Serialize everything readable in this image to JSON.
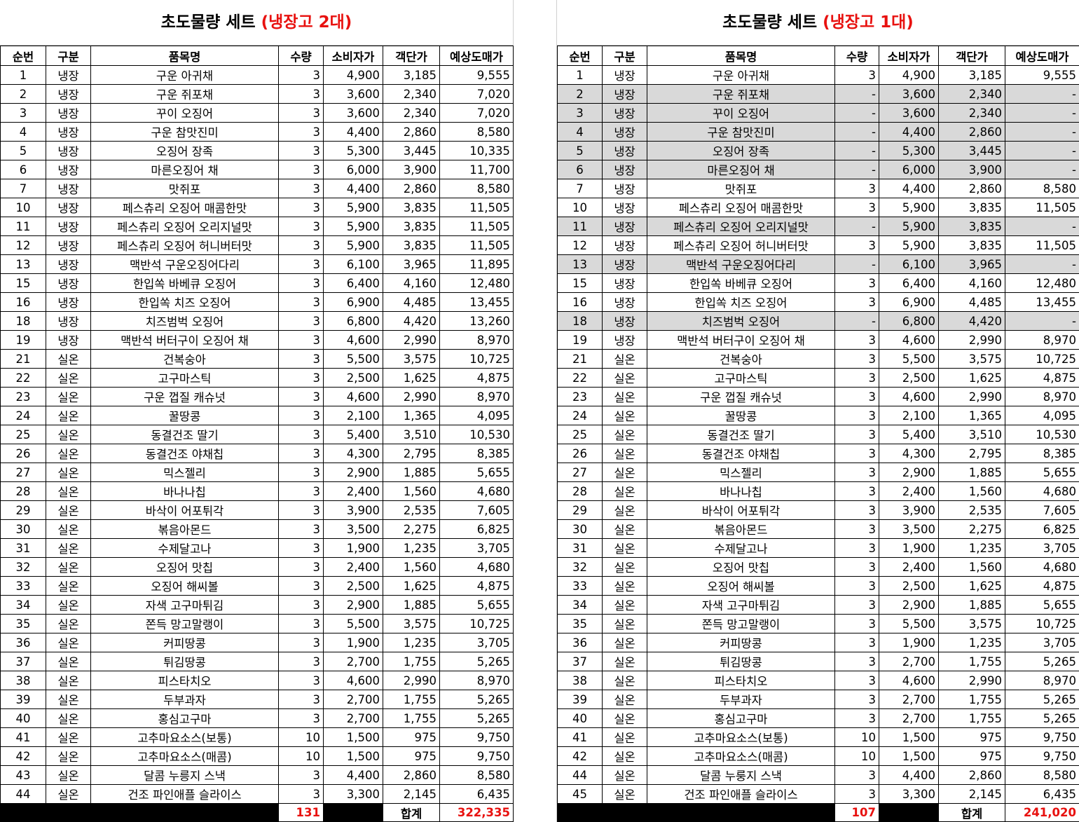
{
  "headers": [
    "순번",
    "구분",
    "품목명",
    "수량",
    "소비자가",
    "객단가",
    "예상도매가"
  ],
  "sheets": [
    {
      "title_main": "초도물량 세트 ",
      "title_sub": "(냉장고 2대)",
      "total_label": "합계",
      "total_qty": "131",
      "total_amount": "322,335",
      "rows": [
        {
          "no": "1",
          "cat": "냉장",
          "name": "구운 아귀채",
          "qty": "3",
          "price": "4,900",
          "unit": "3,185",
          "whole": "9,555",
          "grey": false
        },
        {
          "no": "2",
          "cat": "냉장",
          "name": "구운 쥐포채",
          "qty": "3",
          "price": "3,600",
          "unit": "2,340",
          "whole": "7,020",
          "grey": false
        },
        {
          "no": "3",
          "cat": "냉장",
          "name": "꾸이 오징어",
          "qty": "3",
          "price": "3,600",
          "unit": "2,340",
          "whole": "7,020",
          "grey": false
        },
        {
          "no": "4",
          "cat": "냉장",
          "name": "구운 참맛진미",
          "qty": "3",
          "price": "4,400",
          "unit": "2,860",
          "whole": "8,580",
          "grey": false
        },
        {
          "no": "5",
          "cat": "냉장",
          "name": "오징어 장족",
          "qty": "3",
          "price": "5,300",
          "unit": "3,445",
          "whole": "10,335",
          "grey": false
        },
        {
          "no": "6",
          "cat": "냉장",
          "name": "마른오징어 채",
          "qty": "3",
          "price": "6,000",
          "unit": "3,900",
          "whole": "11,700",
          "grey": false
        },
        {
          "no": "7",
          "cat": "냉장",
          "name": "맛쥐포",
          "qty": "3",
          "price": "4,400",
          "unit": "2,860",
          "whole": "8,580",
          "grey": false
        },
        {
          "no": "10",
          "cat": "냉장",
          "name": "페스츄리 오징어 매콤한맛",
          "qty": "3",
          "price": "5,900",
          "unit": "3,835",
          "whole": "11,505",
          "grey": false
        },
        {
          "no": "11",
          "cat": "냉장",
          "name": "페스츄리 오징어 오리지널맛",
          "qty": "3",
          "price": "5,900",
          "unit": "3,835",
          "whole": "11,505",
          "grey": false
        },
        {
          "no": "12",
          "cat": "냉장",
          "name": "페스츄리 오징어 허니버터맛",
          "qty": "3",
          "price": "5,900",
          "unit": "3,835",
          "whole": "11,505",
          "grey": false
        },
        {
          "no": "13",
          "cat": "냉장",
          "name": "맥반석 구운오징어다리",
          "qty": "3",
          "price": "6,100",
          "unit": "3,965",
          "whole": "11,895",
          "grey": false
        },
        {
          "no": "15",
          "cat": "냉장",
          "name": "한입쏙 바베큐 오징어",
          "qty": "3",
          "price": "6,400",
          "unit": "4,160",
          "whole": "12,480",
          "grey": false
        },
        {
          "no": "16",
          "cat": "냉장",
          "name": "한입쏙 치즈 오징어",
          "qty": "3",
          "price": "6,900",
          "unit": "4,485",
          "whole": "13,455",
          "grey": false
        },
        {
          "no": "18",
          "cat": "냉장",
          "name": "치즈범벅 오징어",
          "qty": "3",
          "price": "6,800",
          "unit": "4,420",
          "whole": "13,260",
          "grey": false
        },
        {
          "no": "19",
          "cat": "냉장",
          "name": "맥반석 버터구이 오징어 채",
          "qty": "3",
          "price": "4,600",
          "unit": "2,990",
          "whole": "8,970",
          "grey": false
        },
        {
          "no": "21",
          "cat": "실온",
          "name": "건복숭아",
          "qty": "3",
          "price": "5,500",
          "unit": "3,575",
          "whole": "10,725",
          "grey": false
        },
        {
          "no": "22",
          "cat": "실온",
          "name": "고구마스틱",
          "qty": "3",
          "price": "2,500",
          "unit": "1,625",
          "whole": "4,875",
          "grey": false
        },
        {
          "no": "23",
          "cat": "실온",
          "name": "구운 껍질 캐슈넛",
          "qty": "3",
          "price": "4,600",
          "unit": "2,990",
          "whole": "8,970",
          "grey": false
        },
        {
          "no": "24",
          "cat": "실온",
          "name": "꿀땅콩",
          "qty": "3",
          "price": "2,100",
          "unit": "1,365",
          "whole": "4,095",
          "grey": false
        },
        {
          "no": "25",
          "cat": "실온",
          "name": "동결건조 딸기",
          "qty": "3",
          "price": "5,400",
          "unit": "3,510",
          "whole": "10,530",
          "grey": false
        },
        {
          "no": "26",
          "cat": "실온",
          "name": "동결건조 야채칩",
          "qty": "3",
          "price": "4,300",
          "unit": "2,795",
          "whole": "8,385",
          "grey": false
        },
        {
          "no": "27",
          "cat": "실온",
          "name": "믹스젤리",
          "qty": "3",
          "price": "2,900",
          "unit": "1,885",
          "whole": "5,655",
          "grey": false
        },
        {
          "no": "28",
          "cat": "실온",
          "name": "바나나칩",
          "qty": "3",
          "price": "2,400",
          "unit": "1,560",
          "whole": "4,680",
          "grey": false
        },
        {
          "no": "29",
          "cat": "실온",
          "name": "바삭이 어포튀각",
          "qty": "3",
          "price": "3,900",
          "unit": "2,535",
          "whole": "7,605",
          "grey": false
        },
        {
          "no": "30",
          "cat": "실온",
          "name": "볶음아몬드",
          "qty": "3",
          "price": "3,500",
          "unit": "2,275",
          "whole": "6,825",
          "grey": false
        },
        {
          "no": "31",
          "cat": "실온",
          "name": "수제달고나",
          "qty": "3",
          "price": "1,900",
          "unit": "1,235",
          "whole": "3,705",
          "grey": false
        },
        {
          "no": "32",
          "cat": "실온",
          "name": "오징어 맛칩",
          "qty": "3",
          "price": "2,400",
          "unit": "1,560",
          "whole": "4,680",
          "grey": false
        },
        {
          "no": "33",
          "cat": "실온",
          "name": "오징어 해씨볼",
          "qty": "3",
          "price": "2,500",
          "unit": "1,625",
          "whole": "4,875",
          "grey": false
        },
        {
          "no": "34",
          "cat": "실온",
          "name": "자색 고구마튀김",
          "qty": "3",
          "price": "2,900",
          "unit": "1,885",
          "whole": "5,655",
          "grey": false
        },
        {
          "no": "35",
          "cat": "실온",
          "name": "쫀득 망고말랭이",
          "qty": "3",
          "price": "5,500",
          "unit": "3,575",
          "whole": "10,725",
          "grey": false
        },
        {
          "no": "36",
          "cat": "실온",
          "name": "커피땅콩",
          "qty": "3",
          "price": "1,900",
          "unit": "1,235",
          "whole": "3,705",
          "grey": false
        },
        {
          "no": "37",
          "cat": "실온",
          "name": "튀김땅콩",
          "qty": "3",
          "price": "2,700",
          "unit": "1,755",
          "whole": "5,265",
          "grey": false
        },
        {
          "no": "38",
          "cat": "실온",
          "name": "피스타치오",
          "qty": "3",
          "price": "4,600",
          "unit": "2,990",
          "whole": "8,970",
          "grey": false
        },
        {
          "no": "39",
          "cat": "실온",
          "name": "두부과자",
          "qty": "3",
          "price": "2,700",
          "unit": "1,755",
          "whole": "5,265",
          "grey": false
        },
        {
          "no": "40",
          "cat": "실온",
          "name": "홍심고구마",
          "qty": "3",
          "price": "2,700",
          "unit": "1,755",
          "whole": "5,265",
          "grey": false
        },
        {
          "no": "41",
          "cat": "실온",
          "name": "고추마요소스(보통)",
          "qty": "10",
          "price": "1,500",
          "unit": "975",
          "whole": "9,750",
          "grey": false
        },
        {
          "no": "42",
          "cat": "실온",
          "name": "고추마요소스(매콤)",
          "qty": "10",
          "price": "1,500",
          "unit": "975",
          "whole": "9,750",
          "grey": false
        },
        {
          "no": "43",
          "cat": "실온",
          "name": "달콤 누릉지 스낵",
          "qty": "3",
          "price": "4,400",
          "unit": "2,860",
          "whole": "8,580",
          "grey": false
        },
        {
          "no": "44",
          "cat": "실온",
          "name": "건조 파인애플 슬라이스",
          "qty": "3",
          "price": "3,300",
          "unit": "2,145",
          "whole": "6,435",
          "grey": false
        }
      ]
    },
    {
      "title_main": "초도물량 세트 ",
      "title_sub": "(냉장고 1대)",
      "total_label": "합계",
      "total_qty": "107",
      "total_amount": "241,020",
      "rows": [
        {
          "no": "1",
          "cat": "냉장",
          "name": "구운 아귀채",
          "qty": "3",
          "price": "4,900",
          "unit": "3,185",
          "whole": "9,555",
          "grey": false
        },
        {
          "no": "2",
          "cat": "냉장",
          "name": "구운 쥐포채",
          "qty": "-",
          "price": "3,600",
          "unit": "2,340",
          "whole": "-",
          "grey": true
        },
        {
          "no": "3",
          "cat": "냉장",
          "name": "꾸이 오징어",
          "qty": "-",
          "price": "3,600",
          "unit": "2,340",
          "whole": "-",
          "grey": true
        },
        {
          "no": "4",
          "cat": "냉장",
          "name": "구운 참맛진미",
          "qty": "-",
          "price": "4,400",
          "unit": "2,860",
          "whole": "-",
          "grey": true
        },
        {
          "no": "5",
          "cat": "냉장",
          "name": "오징어 장족",
          "qty": "-",
          "price": "5,300",
          "unit": "3,445",
          "whole": "-",
          "grey": true
        },
        {
          "no": "6",
          "cat": "냉장",
          "name": "마른오징어 채",
          "qty": "-",
          "price": "6,000",
          "unit": "3,900",
          "whole": "-",
          "grey": true
        },
        {
          "no": "7",
          "cat": "냉장",
          "name": "맛쥐포",
          "qty": "3",
          "price": "4,400",
          "unit": "2,860",
          "whole": "8,580",
          "grey": false
        },
        {
          "no": "10",
          "cat": "냉장",
          "name": "페스츄리 오징어 매콤한맛",
          "qty": "3",
          "price": "5,900",
          "unit": "3,835",
          "whole": "11,505",
          "grey": false
        },
        {
          "no": "11",
          "cat": "냉장",
          "name": "페스츄리 오징어 오리지널맛",
          "qty": "-",
          "price": "5,900",
          "unit": "3,835",
          "whole": "-",
          "grey": true
        },
        {
          "no": "12",
          "cat": "냉장",
          "name": "페스츄리 오징어 허니버터맛",
          "qty": "3",
          "price": "5,900",
          "unit": "3,835",
          "whole": "11,505",
          "grey": false
        },
        {
          "no": "13",
          "cat": "냉장",
          "name": "맥반석 구운오징어다리",
          "qty": "-",
          "price": "6,100",
          "unit": "3,965",
          "whole": "-",
          "grey": true
        },
        {
          "no": "15",
          "cat": "냉장",
          "name": "한입쏙 바베큐 오징어",
          "qty": "3",
          "price": "6,400",
          "unit": "4,160",
          "whole": "12,480",
          "grey": false
        },
        {
          "no": "16",
          "cat": "냉장",
          "name": "한입쏙 치즈 오징어",
          "qty": "3",
          "price": "6,900",
          "unit": "4,485",
          "whole": "13,455",
          "grey": false
        },
        {
          "no": "18",
          "cat": "냉장",
          "name": "치즈범벅 오징어",
          "qty": "-",
          "price": "6,800",
          "unit": "4,420",
          "whole": "-",
          "grey": true
        },
        {
          "no": "19",
          "cat": "냉장",
          "name": "맥반석 버터구이 오징어 채",
          "qty": "3",
          "price": "4,600",
          "unit": "2,990",
          "whole": "8,970",
          "grey": false
        },
        {
          "no": "21",
          "cat": "실온",
          "name": "건복숭아",
          "qty": "3",
          "price": "5,500",
          "unit": "3,575",
          "whole": "10,725",
          "grey": false
        },
        {
          "no": "22",
          "cat": "실온",
          "name": "고구마스틱",
          "qty": "3",
          "price": "2,500",
          "unit": "1,625",
          "whole": "4,875",
          "grey": false
        },
        {
          "no": "23",
          "cat": "실온",
          "name": "구운 껍질 캐슈넛",
          "qty": "3",
          "price": "4,600",
          "unit": "2,990",
          "whole": "8,970",
          "grey": false
        },
        {
          "no": "24",
          "cat": "실온",
          "name": "꿀땅콩",
          "qty": "3",
          "price": "2,100",
          "unit": "1,365",
          "whole": "4,095",
          "grey": false
        },
        {
          "no": "25",
          "cat": "실온",
          "name": "동결건조 딸기",
          "qty": "3",
          "price": "5,400",
          "unit": "3,510",
          "whole": "10,530",
          "grey": false
        },
        {
          "no": "26",
          "cat": "실온",
          "name": "동결건조 야채칩",
          "qty": "3",
          "price": "4,300",
          "unit": "2,795",
          "whole": "8,385",
          "grey": false
        },
        {
          "no": "27",
          "cat": "실온",
          "name": "믹스젤리",
          "qty": "3",
          "price": "2,900",
          "unit": "1,885",
          "whole": "5,655",
          "grey": false
        },
        {
          "no": "28",
          "cat": "실온",
          "name": "바나나칩",
          "qty": "3",
          "price": "2,400",
          "unit": "1,560",
          "whole": "4,680",
          "grey": false
        },
        {
          "no": "29",
          "cat": "실온",
          "name": "바삭이 어포튀각",
          "qty": "3",
          "price": "3,900",
          "unit": "2,535",
          "whole": "7,605",
          "grey": false
        },
        {
          "no": "30",
          "cat": "실온",
          "name": "볶음아몬드",
          "qty": "3",
          "price": "3,500",
          "unit": "2,275",
          "whole": "6,825",
          "grey": false
        },
        {
          "no": "31",
          "cat": "실온",
          "name": "수제달고나",
          "qty": "3",
          "price": "1,900",
          "unit": "1,235",
          "whole": "3,705",
          "grey": false
        },
        {
          "no": "32",
          "cat": "실온",
          "name": "오징어 맛칩",
          "qty": "3",
          "price": "2,400",
          "unit": "1,560",
          "whole": "4,680",
          "grey": false
        },
        {
          "no": "33",
          "cat": "실온",
          "name": "오징어 해씨볼",
          "qty": "3",
          "price": "2,500",
          "unit": "1,625",
          "whole": "4,875",
          "grey": false
        },
        {
          "no": "34",
          "cat": "실온",
          "name": "자색 고구마튀김",
          "qty": "3",
          "price": "2,900",
          "unit": "1,885",
          "whole": "5,655",
          "grey": false
        },
        {
          "no": "35",
          "cat": "실온",
          "name": "쫀득 망고말랭이",
          "qty": "3",
          "price": "5,500",
          "unit": "3,575",
          "whole": "10,725",
          "grey": false
        },
        {
          "no": "36",
          "cat": "실온",
          "name": "커피땅콩",
          "qty": "3",
          "price": "1,900",
          "unit": "1,235",
          "whole": "3,705",
          "grey": false
        },
        {
          "no": "37",
          "cat": "실온",
          "name": "튀김땅콩",
          "qty": "3",
          "price": "2,700",
          "unit": "1,755",
          "whole": "5,265",
          "grey": false
        },
        {
          "no": "38",
          "cat": "실온",
          "name": "피스타치오",
          "qty": "3",
          "price": "4,600",
          "unit": "2,990",
          "whole": "8,970",
          "grey": false
        },
        {
          "no": "39",
          "cat": "실온",
          "name": "두부과자",
          "qty": "3",
          "price": "2,700",
          "unit": "1,755",
          "whole": "5,265",
          "grey": false
        },
        {
          "no": "40",
          "cat": "실온",
          "name": "홍심고구마",
          "qty": "3",
          "price": "2,700",
          "unit": "1,755",
          "whole": "5,265",
          "grey": false
        },
        {
          "no": "41",
          "cat": "실온",
          "name": "고추마요소스(보통)",
          "qty": "10",
          "price": "1,500",
          "unit": "975",
          "whole": "9,750",
          "grey": false
        },
        {
          "no": "42",
          "cat": "실온",
          "name": "고추마요소스(매콤)",
          "qty": "10",
          "price": "1,500",
          "unit": "975",
          "whole": "9,750",
          "grey": false
        },
        {
          "no": "44",
          "cat": "실온",
          "name": "달콤 누룽지 스낵",
          "qty": "3",
          "price": "4,400",
          "unit": "2,860",
          "whole": "8,580",
          "grey": false
        },
        {
          "no": "45",
          "cat": "실온",
          "name": "건조 파인애플 슬라이스",
          "qty": "3",
          "price": "3,300",
          "unit": "2,145",
          "whole": "6,435",
          "grey": false
        }
      ]
    }
  ],
  "colors": {
    "title_accent": "#e8110f",
    "excluded_row_fill": "#d9d9d9",
    "total_bar": "#000000"
  }
}
